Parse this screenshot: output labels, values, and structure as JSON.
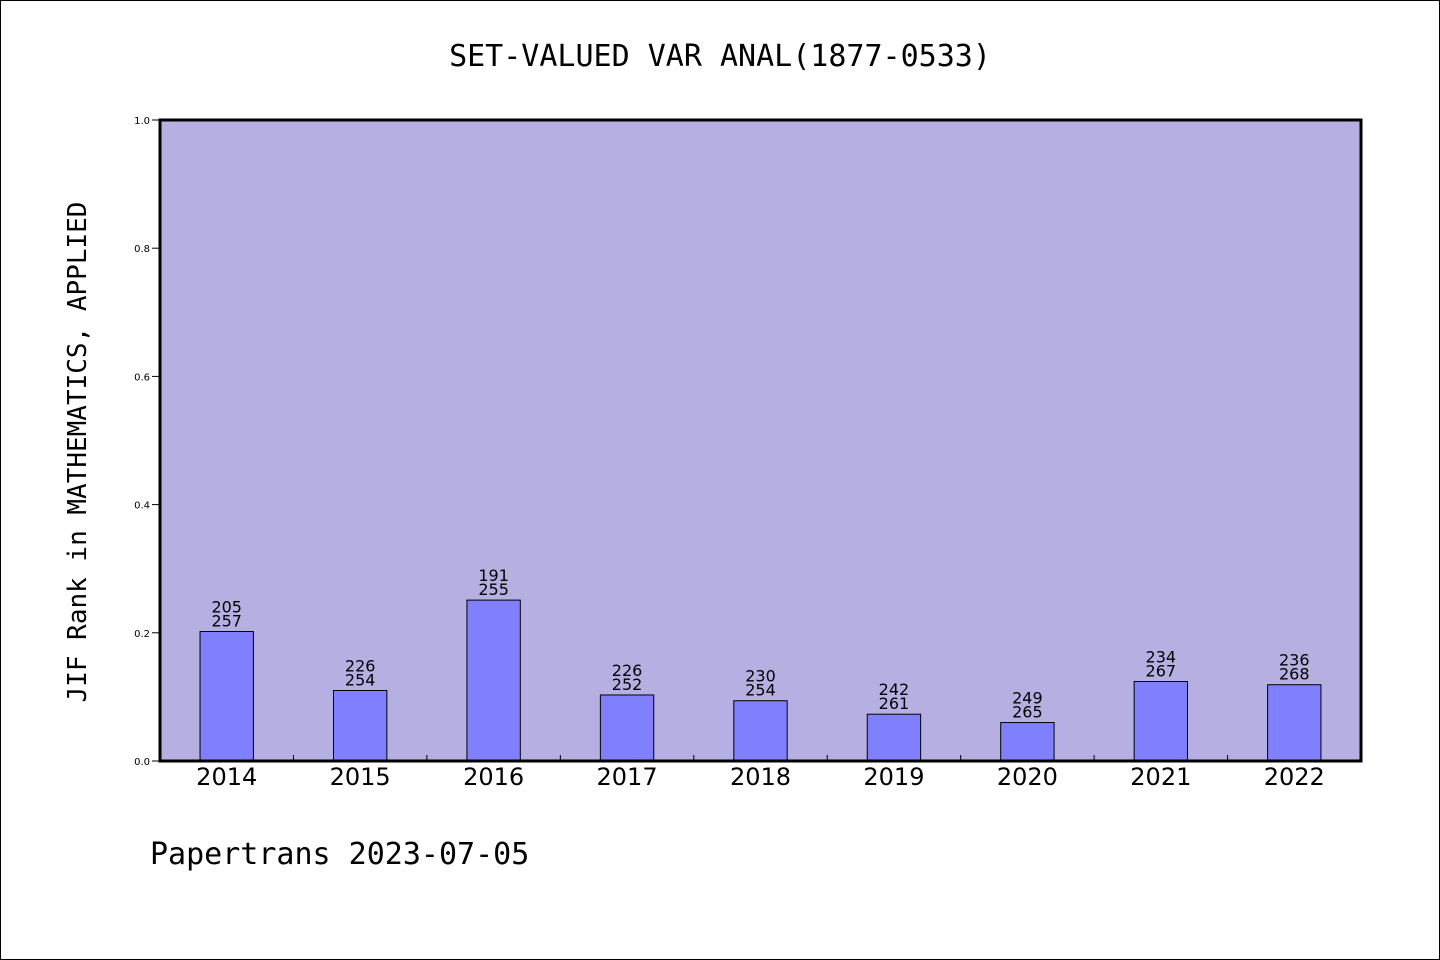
{
  "chart_data": {
    "type": "bar",
    "title": "SET-VALUED VAR ANAL(1877-0533)",
    "ylabel": "JIF Rank in MATHEMATICS, APPLIED",
    "xlabel": "",
    "footer": "Papertrans 2023-07-05",
    "ylim": [
      0,
      1.0
    ],
    "yticks": [
      "0.0",
      "0.2",
      "0.4",
      "0.6",
      "0.8",
      "1.0"
    ],
    "grid": false,
    "colors": {
      "plot_background": "#b6b0e2",
      "bar_fill": "#8080ff",
      "bar_stroke": "#000000"
    },
    "categories": [
      "2014",
      "2015",
      "2016",
      "2017",
      "2018",
      "2019",
      "2020",
      "2021",
      "2022"
    ],
    "values": [
      0.202,
      0.11,
      0.251,
      0.103,
      0.094,
      0.073,
      0.06,
      0.124,
      0.119
    ],
    "rank_labels": [
      [
        "205",
        "257"
      ],
      [
        "226",
        "254"
      ],
      [
        "191",
        "255"
      ],
      [
        "226",
        "252"
      ],
      [
        "230",
        "254"
      ],
      [
        "242",
        "261"
      ],
      [
        "249",
        "265"
      ],
      [
        "234",
        "267"
      ],
      [
        "236",
        "268"
      ]
    ]
  }
}
